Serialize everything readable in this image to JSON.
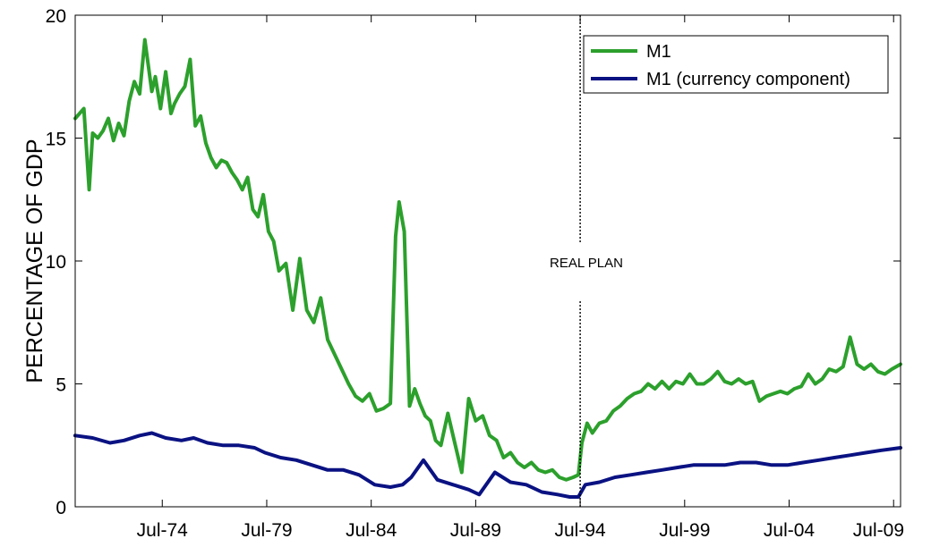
{
  "chart_data": {
    "type": "line",
    "title": "",
    "xlabel": "",
    "ylabel": "PERCENTAGE OF GDP",
    "ylim": [
      0,
      20
    ],
    "xlim": [
      "1970-05",
      "2009-11"
    ],
    "yticks": [
      0,
      5,
      10,
      15,
      20
    ],
    "xticks": [
      "Jul-74",
      "Jul-79",
      "Jul-84",
      "Jul-89",
      "Jul-94",
      "Jul-99",
      "Jul-04",
      "Jul-09"
    ],
    "grid": false,
    "legend_position": "top-right",
    "annotation": {
      "text": "REAL PLAN",
      "x": "1994-07"
    },
    "colors": {
      "M1": "#2ca02c",
      "M1 (currency component)": "#0a1282"
    },
    "series": [
      {
        "name": "M1",
        "x": [
          "1970-05",
          "1970-10",
          "1971-01",
          "1971-03",
          "1971-06",
          "1971-09",
          "1971-12",
          "1972-03",
          "1972-06",
          "1972-09",
          "1972-12",
          "1973-03",
          "1973-06",
          "1973-09",
          "1974-01",
          "1974-03",
          "1974-06",
          "1974-09",
          "1974-12",
          "1975-02",
          "1975-05",
          "1975-08",
          "1975-11",
          "1976-02",
          "1976-05",
          "1976-08",
          "1976-11",
          "1977-02",
          "1977-05",
          "1977-08",
          "1977-11",
          "1978-02",
          "1978-05",
          "1978-08",
          "1978-11",
          "1979-02",
          "1979-05",
          "1979-08",
          "1979-11",
          "1980-02",
          "1980-06",
          "1980-10",
          "1981-02",
          "1981-06",
          "1981-10",
          "1982-02",
          "1982-06",
          "1982-10",
          "1983-02",
          "1983-06",
          "1983-10",
          "1984-02",
          "1984-06",
          "1984-10",
          "1985-02",
          "1985-06",
          "1985-09",
          "1985-11",
          "1986-02",
          "1986-05",
          "1986-08",
          "1986-11",
          "1987-02",
          "1987-05",
          "1987-08",
          "1987-11",
          "1988-03",
          "1988-07",
          "1988-11",
          "1989-03",
          "1989-07",
          "1989-11",
          "1990-03",
          "1990-07",
          "1990-11",
          "1991-03",
          "1991-07",
          "1991-11",
          "1992-03",
          "1992-07",
          "1992-11",
          "1993-03",
          "1993-07",
          "1993-11",
          "1994-03",
          "1994-06",
          "1994-08",
          "1994-11",
          "1995-02",
          "1995-06",
          "1995-10",
          "1996-02",
          "1996-06",
          "1996-10",
          "1997-02",
          "1997-06",
          "1997-10",
          "1998-02",
          "1998-06",
          "1998-10",
          "1999-02",
          "1999-06",
          "1999-10",
          "2000-02",
          "2000-06",
          "2000-10",
          "2001-02",
          "2001-06",
          "2001-10",
          "2002-02",
          "2002-06",
          "2002-10",
          "2003-02",
          "2003-06",
          "2003-10",
          "2004-02",
          "2004-06",
          "2004-10",
          "2005-02",
          "2005-06",
          "2005-10",
          "2006-02",
          "2006-06",
          "2006-10",
          "2007-02",
          "2007-06",
          "2007-10",
          "2008-02",
          "2008-06",
          "2008-10",
          "2009-02",
          "2009-06",
          "2009-11"
        ],
        "values": [
          15.8,
          16.2,
          12.9,
          15.2,
          15.0,
          15.3,
          15.8,
          14.9,
          15.6,
          15.1,
          16.5,
          17.3,
          16.8,
          19.0,
          16.9,
          17.5,
          16.2,
          17.7,
          16.0,
          16.4,
          16.8,
          17.1,
          18.2,
          15.5,
          15.9,
          14.8,
          14.2,
          13.8,
          14.1,
          14.0,
          13.6,
          13.3,
          12.9,
          13.4,
          12.1,
          11.8,
          12.7,
          11.2,
          10.8,
          9.6,
          9.9,
          8.0,
          10.1,
          8.0,
          7.5,
          8.5,
          6.8,
          6.2,
          5.6,
          5.0,
          4.5,
          4.3,
          4.6,
          3.9,
          4.0,
          4.2,
          11.0,
          12.4,
          11.2,
          4.1,
          4.8,
          4.2,
          3.7,
          3.5,
          2.7,
          2.5,
          3.8,
          2.6,
          1.4,
          4.4,
          3.5,
          3.7,
          2.9,
          2.7,
          2.0,
          2.2,
          1.8,
          1.6,
          1.8,
          1.5,
          1.4,
          1.5,
          1.2,
          1.1,
          1.2,
          1.3,
          2.6,
          3.4,
          3.0,
          3.4,
          3.5,
          3.9,
          4.1,
          4.4,
          4.6,
          4.7,
          5.0,
          4.8,
          5.1,
          4.8,
          5.1,
          5.0,
          5.4,
          5.0,
          5.0,
          5.2,
          5.5,
          5.1,
          5.0,
          5.2,
          5.0,
          5.1,
          4.3,
          4.5,
          4.6,
          4.7,
          4.6,
          4.8,
          4.9,
          5.4,
          5.0,
          5.2,
          5.6,
          5.5,
          5.7,
          6.9,
          5.8,
          5.6,
          5.8,
          5.5,
          5.4,
          5.6,
          5.8
        ]
      },
      {
        "name": "M1 (currency component)",
        "x": [
          "1970-05",
          "1971-03",
          "1972-01",
          "1972-09",
          "1973-06",
          "1974-01",
          "1974-09",
          "1975-06",
          "1976-01",
          "1976-09",
          "1977-06",
          "1978-03",
          "1978-12",
          "1979-06",
          "1980-03",
          "1980-12",
          "1981-09",
          "1982-06",
          "1983-03",
          "1983-12",
          "1984-09",
          "1985-06",
          "1986-01",
          "1986-06",
          "1987-01",
          "1987-09",
          "1988-06",
          "1989-03",
          "1989-09",
          "1990-06",
          "1991-03",
          "1991-12",
          "1992-09",
          "1993-06",
          "1994-01",
          "1994-06",
          "1994-10",
          "1995-06",
          "1996-03",
          "1996-12",
          "1997-09",
          "1998-06",
          "1999-03",
          "1999-12",
          "2000-09",
          "2001-06",
          "2002-03",
          "2002-12",
          "2003-09",
          "2004-06",
          "2005-03",
          "2005-12",
          "2006-09",
          "2007-06",
          "2008-03",
          "2008-12",
          "2009-11"
        ],
        "values": [
          2.9,
          2.8,
          2.6,
          2.7,
          2.9,
          3.0,
          2.8,
          2.7,
          2.8,
          2.6,
          2.5,
          2.5,
          2.4,
          2.2,
          2.0,
          1.9,
          1.7,
          1.5,
          1.5,
          1.3,
          0.9,
          0.8,
          0.9,
          1.2,
          1.9,
          1.1,
          0.9,
          0.7,
          0.5,
          1.4,
          1.0,
          0.9,
          0.6,
          0.5,
          0.4,
          0.4,
          0.9,
          1.0,
          1.2,
          1.3,
          1.4,
          1.5,
          1.6,
          1.7,
          1.7,
          1.7,
          1.8,
          1.8,
          1.7,
          1.7,
          1.8,
          1.9,
          2.0,
          2.1,
          2.2,
          2.3,
          2.4
        ]
      }
    ]
  }
}
